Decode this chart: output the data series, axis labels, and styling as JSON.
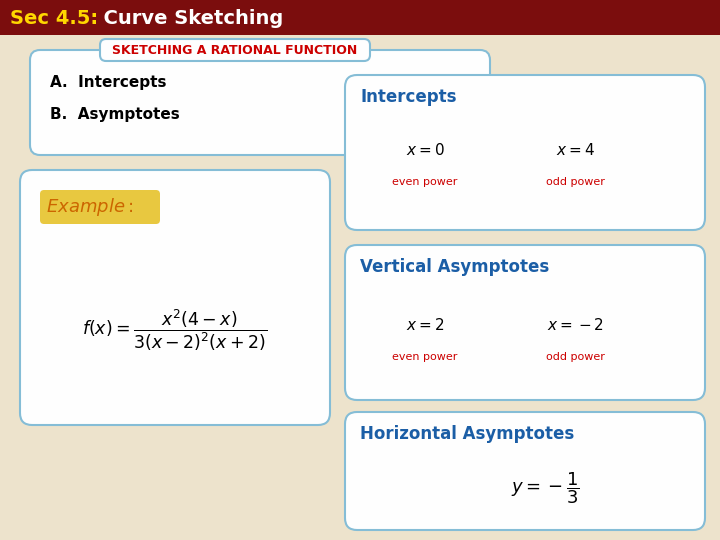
{
  "title_sec": "Sec 4.5:",
  "title_rest": "  Curve Sketching",
  "title_bg": "#7B0D0D",
  "title_color_sec": "#FFD700",
  "title_color_rest": "#FFFFFF",
  "bg_color": "#EDE3CC",
  "top_box_title": "SKETCHING A RATIONAL FUNCTION",
  "top_box_item1": "A.  Intercepts",
  "top_box_item2": "B.  Asymptotes",
  "top_box_title_color": "#CC0000",
  "top_box_text_color": "#000000",
  "top_box_bg": "#FEFEFE",
  "top_box_border": "#85BDD6",
  "example_label_bg": "#E8C840",
  "example_label_color": "#CC6600",
  "example_box_bg": "#FEFEFE",
  "example_box_border": "#85BDD6",
  "intercepts_title": "Intercepts",
  "va_title": "Vertical Asymptotes",
  "ha_title": "Horizontal Asymptotes",
  "section_title_color": "#1B5EA6",
  "eq_color": "#000000",
  "label_color": "#CC0000",
  "right_box_bg": "#FEFEFE",
  "right_box_border": "#85BDD6"
}
